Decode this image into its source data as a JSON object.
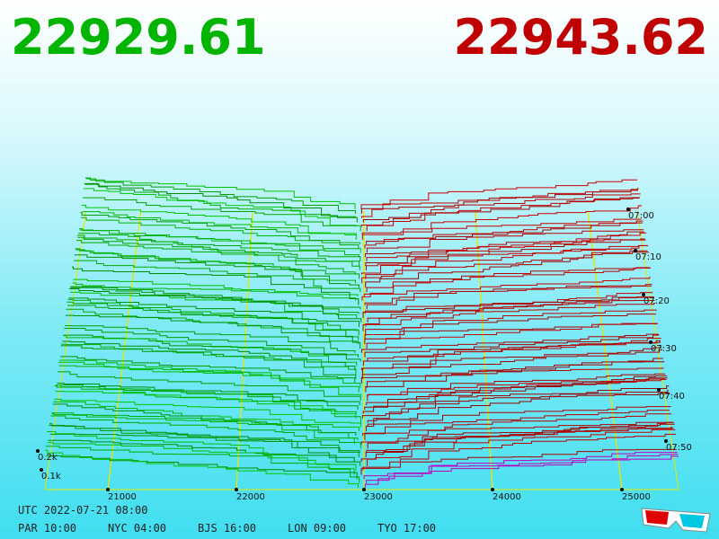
{
  "header": {
    "bid": "22929.61",
    "ask": "22943.62"
  },
  "axis": {
    "price_ticks": [
      "21000",
      "22000",
      "23000",
      "24000",
      "25000"
    ],
    "time_ticks": [
      "07:00",
      "07:10",
      "07:20",
      "07:30",
      "07:40",
      "07:50"
    ],
    "depth_ticks": [
      "0.2k",
      "0.1k"
    ]
  },
  "footer": {
    "utc": "UTC 2022-07-21 08:00",
    "clocks": [
      "PAR 10:00",
      "NYC 04:00",
      "BJS 16:00",
      "LON 09:00",
      "TYO 17:00"
    ]
  }
}
